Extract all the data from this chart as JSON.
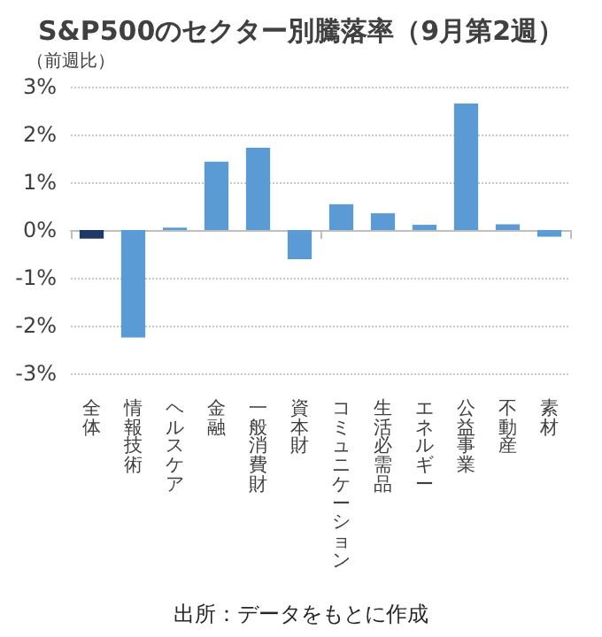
{
  "chart_data": {
    "type": "bar",
    "title": "S&P500のセクター別騰落率（9月第2週）",
    "ylabel": "（前週比）",
    "categories": [
      "全体",
      "情報技術",
      "ヘルスケア",
      "金融",
      "一般消費財",
      "資本財",
      "コミュニケーション",
      "生活必需品",
      "エネルギー",
      "公益事業",
      "不動産",
      "素材"
    ],
    "values": [
      -0.18,
      -2.25,
      0.05,
      1.43,
      1.72,
      -0.61,
      0.54,
      0.35,
      0.11,
      2.65,
      0.12,
      -0.14
    ],
    "colors": [
      "#1f3864",
      "#5b9bd5",
      "#5b9bd5",
      "#5b9bd5",
      "#5b9bd5",
      "#5b9bd5",
      "#5b9bd5",
      "#5b9bd5",
      "#5b9bd5",
      "#5b9bd5",
      "#5b9bd5",
      "#5b9bd5"
    ],
    "ylim": [
      -3,
      3
    ],
    "yticks": [
      {
        "value": -3,
        "label": "-3%"
      },
      {
        "value": -2,
        "label": "-2%"
      },
      {
        "value": -1,
        "label": "-1%"
      },
      {
        "value": 0,
        "label": "0%"
      },
      {
        "value": 1,
        "label": "1%"
      },
      {
        "value": 2,
        "label": "2%"
      },
      {
        "value": 3,
        "label": "3%"
      }
    ],
    "grid": "y",
    "annotations": [
      "出所：データをもとに作成"
    ]
  }
}
